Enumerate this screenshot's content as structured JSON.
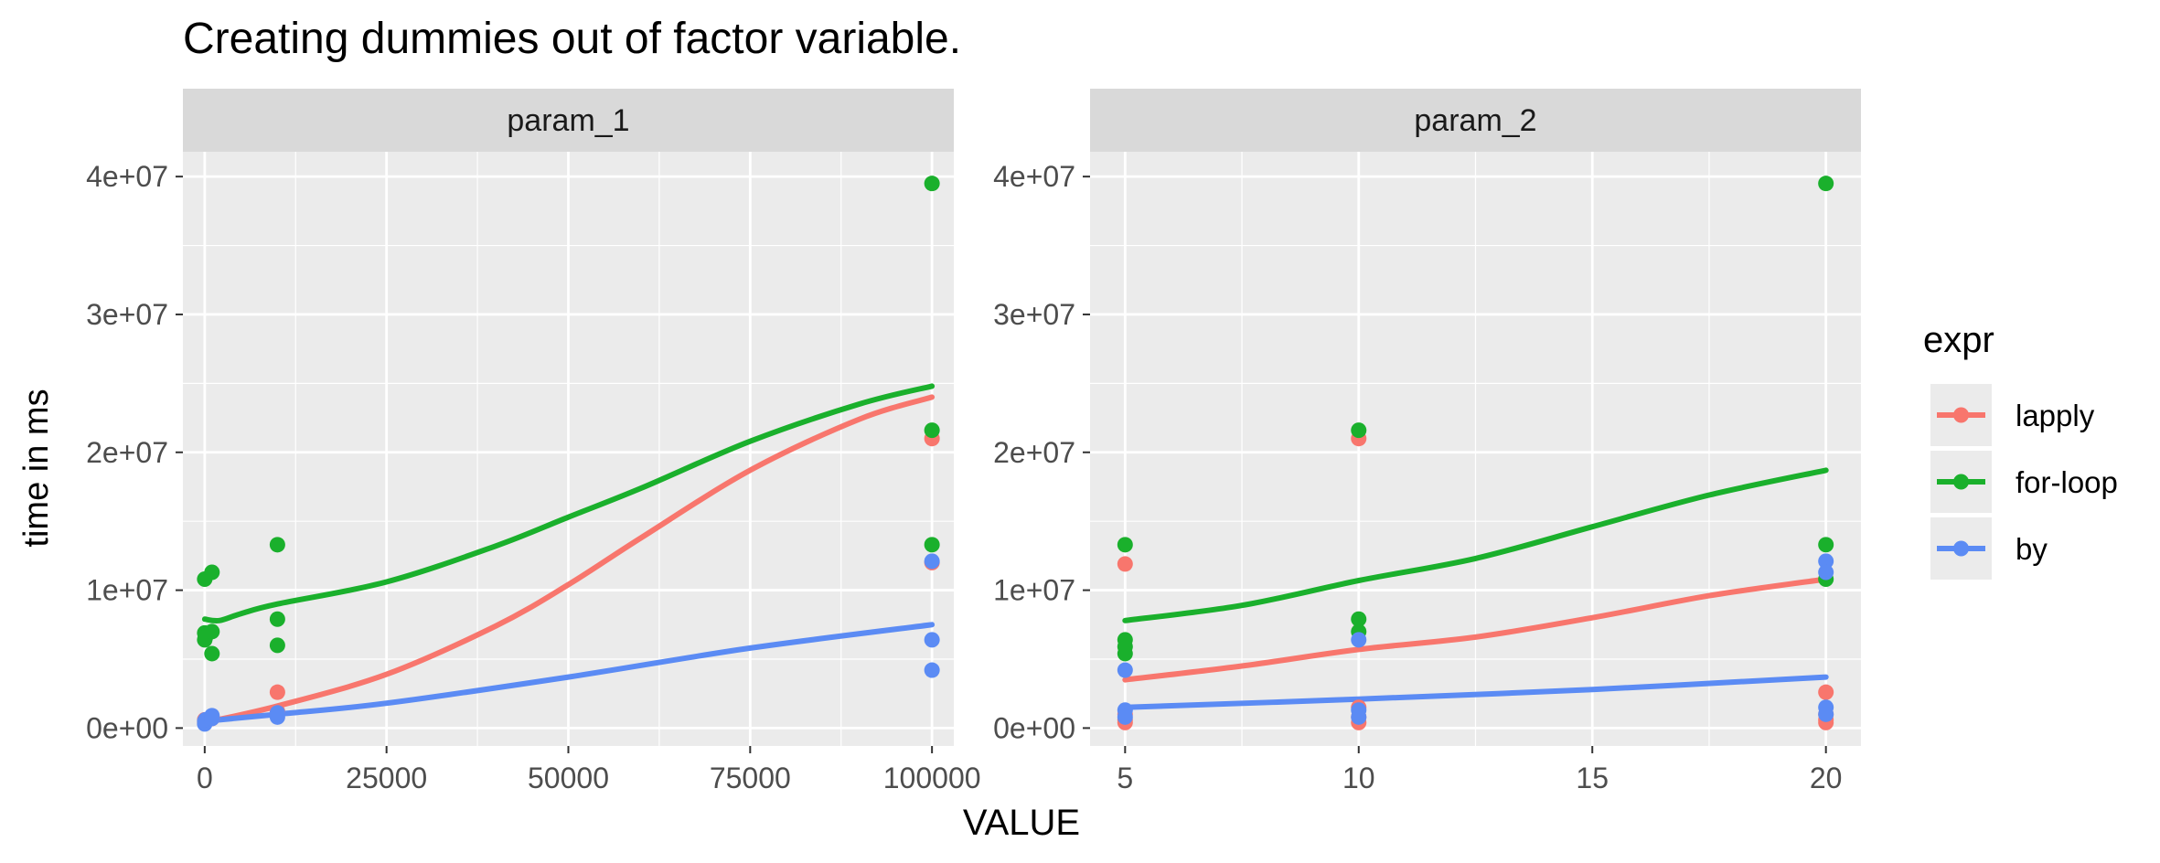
{
  "chart_data": {
    "type": "scatter",
    "title": "Creating dummies out of factor variable.",
    "xlabel": "VALUE",
    "ylabel": "time in ms",
    "legend_title": "expr",
    "legend_position": "right",
    "grid": true,
    "y_ticks": [
      "0e+00",
      "1e+07",
      "2e+07",
      "3e+07",
      "4e+07"
    ],
    "series_styles": [
      {
        "name": "lapply",
        "color": "#F8766D"
      },
      {
        "name": "for-loop",
        "color": "#1AB02C"
      },
      {
        "name": "by",
        "color": "#5B8BF4"
      }
    ],
    "panels": [
      {
        "strip": "param_1",
        "xlim": [
          -3000,
          103000
        ],
        "ylim": [
          -1300000,
          41800000
        ],
        "x_ticks": [
          0,
          25000,
          50000,
          75000,
          100000
        ],
        "x_tick_labels": [
          "0",
          "25000",
          "50000",
          "75000",
          "100000"
        ],
        "series": [
          {
            "name": "lapply",
            "points": [
              [
                0,
                400000
              ],
              [
                0,
                600000
              ],
              [
                100,
                500000
              ],
              [
                1000,
                700000
              ],
              [
                1000,
                800000
              ],
              [
                10000,
                2600000
              ],
              [
                10000,
                1200000
              ],
              [
                100000,
                21000000
              ],
              [
                100000,
                12000000
              ]
            ],
            "smooth": [
              [
                0,
                400000
              ],
              [
                10000,
                1600000
              ],
              [
                25000,
                3900000
              ],
              [
                40000,
                7400000
              ],
              [
                50000,
                10400000
              ],
              [
                60000,
                13800000
              ],
              [
                75000,
                18700000
              ],
              [
                90000,
                22400000
              ],
              [
                100000,
                24000000
              ]
            ]
          },
          {
            "name": "for-loop",
            "points": [
              [
                0,
                10800000
              ],
              [
                0,
                6900000
              ],
              [
                0,
                6400000
              ],
              [
                100,
                6600000
              ],
              [
                1000,
                11300000
              ],
              [
                1000,
                7000000
              ],
              [
                1000,
                5400000
              ],
              [
                10000,
                13300000
              ],
              [
                10000,
                7900000
              ],
              [
                10000,
                6000000
              ],
              [
                100000,
                39500000
              ],
              [
                100000,
                21600000
              ],
              [
                100000,
                13300000
              ]
            ],
            "smooth": [
              [
                0,
                7900000
              ],
              [
                2000,
                7800000
              ],
              [
                5000,
                8300000
              ],
              [
                10000,
                9000000
              ],
              [
                25000,
                10600000
              ],
              [
                40000,
                13200000
              ],
              [
                50000,
                15300000
              ],
              [
                60000,
                17400000
              ],
              [
                75000,
                20800000
              ],
              [
                90000,
                23500000
              ],
              [
                100000,
                24800000
              ]
            ]
          },
          {
            "name": "by",
            "points": [
              [
                0,
                500000
              ],
              [
                0,
                300000
              ],
              [
                100,
                600000
              ],
              [
                1000,
                900000
              ],
              [
                1000,
                700000
              ],
              [
                10000,
                800000
              ],
              [
                10000,
                1100000
              ],
              [
                100000,
                12100000
              ],
              [
                100000,
                6400000
              ],
              [
                100000,
                4200000
              ]
            ],
            "smooth": [
              [
                0,
                500000
              ],
              [
                10000,
                1000000
              ],
              [
                25000,
                1800000
              ],
              [
                50000,
                3700000
              ],
              [
                75000,
                5800000
              ],
              [
                100000,
                7500000
              ]
            ]
          }
        ]
      },
      {
        "strip": "param_2",
        "xlim": [
          4.25,
          20.75
        ],
        "ylim": [
          -1300000,
          41800000
        ],
        "x_ticks": [
          5,
          10,
          15,
          20
        ],
        "x_tick_labels": [
          "5",
          "10",
          "15",
          "20"
        ],
        "series": [
          {
            "name": "lapply",
            "points": [
              [
                5,
                11900000
              ],
              [
                5,
                1000000
              ],
              [
                5,
                600000
              ],
              [
                5,
                400000
              ],
              [
                10,
                21000000
              ],
              [
                10,
                1500000
              ],
              [
                10,
                800000
              ],
              [
                10,
                400000
              ],
              [
                20,
                2600000
              ],
              [
                20,
                1000000
              ],
              [
                20,
                600000
              ],
              [
                20,
                400000
              ]
            ],
            "smooth": [
              [
                5,
                3500000
              ],
              [
                7.5,
                4500000
              ],
              [
                10,
                5700000
              ],
              [
                12.5,
                6600000
              ],
              [
                15,
                8000000
              ],
              [
                17.5,
                9600000
              ],
              [
                20,
                10800000
              ]
            ]
          },
          {
            "name": "for-loop",
            "points": [
              [
                5,
                13300000
              ],
              [
                5,
                6400000
              ],
              [
                5,
                5900000
              ],
              [
                5,
                5400000
              ],
              [
                10,
                21600000
              ],
              [
                10,
                7900000
              ],
              [
                10,
                7000000
              ],
              [
                20,
                39500000
              ],
              [
                20,
                13300000
              ],
              [
                20,
                10800000
              ]
            ],
            "smooth": [
              [
                5,
                7800000
              ],
              [
                7.5,
                8900000
              ],
              [
                10,
                10700000
              ],
              [
                12.5,
                12300000
              ],
              [
                15,
                14600000
              ],
              [
                17.5,
                16900000
              ],
              [
                20,
                18700000
              ]
            ]
          },
          {
            "name": "by",
            "points": [
              [
                5,
                4200000
              ],
              [
                5,
                1300000
              ],
              [
                5,
                800000
              ],
              [
                10,
                6400000
              ],
              [
                10,
                1300000
              ],
              [
                10,
                800000
              ],
              [
                20,
                12100000
              ],
              [
                20,
                11300000
              ],
              [
                20,
                1500000
              ],
              [
                20,
                1000000
              ]
            ],
            "smooth": [
              [
                5,
                1500000
              ],
              [
                10,
                2100000
              ],
              [
                15,
                2800000
              ],
              [
                20,
                3700000
              ]
            ]
          }
        ]
      }
    ]
  }
}
